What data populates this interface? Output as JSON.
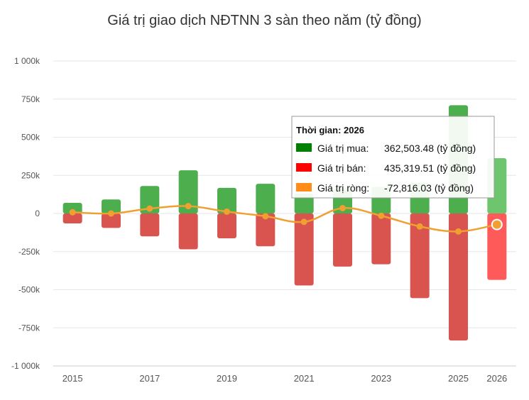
{
  "chart_data": {
    "type": "bar",
    "title": "Giá trị giao dịch NĐTNN 3 sàn theo năm (tỷ đồng)",
    "categories": [
      "2015",
      "2016",
      "2017",
      "2018",
      "2019",
      "2020",
      "2021",
      "2022",
      "2023",
      "2024",
      "2025",
      "2026"
    ],
    "x_tick_labels": [
      "2015",
      "",
      "2017",
      "",
      "2019",
      "",
      "2021",
      "",
      "2023",
      "",
      "2025",
      "2026"
    ],
    "y_ticks": [
      1000000,
      750000,
      500000,
      250000,
      0,
      -250000,
      -500000,
      -750000,
      -1000000
    ],
    "y_tick_labels": [
      "1 000k",
      "750k",
      "500k",
      "250k",
      "0",
      "-250k",
      "-500k",
      "-750k",
      "-1 000k"
    ],
    "ylim": [
      -1000000,
      1000000
    ],
    "grid": true,
    "series": [
      {
        "name": "Giá trị mua",
        "kind": "bar",
        "color": "#4cae4c",
        "values": [
          70000,
          92000,
          180000,
          283000,
          168000,
          195000,
          130000,
          160000,
          175000,
          200000,
          710000,
          362503.48
        ]
      },
      {
        "name": "Giá trị bán",
        "kind": "bar",
        "color": "#d9534f",
        "values": [
          -65000,
          -95000,
          -150000,
          -235000,
          -163000,
          -215000,
          -472000,
          -348000,
          -333000,
          -555000,
          -833000,
          -435319.51
        ]
      },
      {
        "name": "Giá trị ròng",
        "kind": "line",
        "color": "#f0a030",
        "values": [
          8000,
          0,
          32000,
          48000,
          12000,
          -18000,
          -55000,
          35000,
          -15000,
          -85000,
          -118000,
          -72816.03
        ]
      }
    ],
    "tooltip": {
      "title": "Thời gian: 2026",
      "rows": [
        {
          "label": "Giá trị mua:",
          "value": "362,503.48 (tỷ đồng)",
          "color": "#008000"
        },
        {
          "label": "Giá trị bán:",
          "value": "435,319.51 (tỷ đồng)",
          "color": "#ff0000"
        },
        {
          "label": "Giá trị ròng:",
          "value": "-72,816.03 (tỷ đồng)",
          "color": "#ff8c1a"
        }
      ]
    },
    "highlight_color_buy": "#6dc56d",
    "highlight_color_sell": "#ff5a5a"
  }
}
